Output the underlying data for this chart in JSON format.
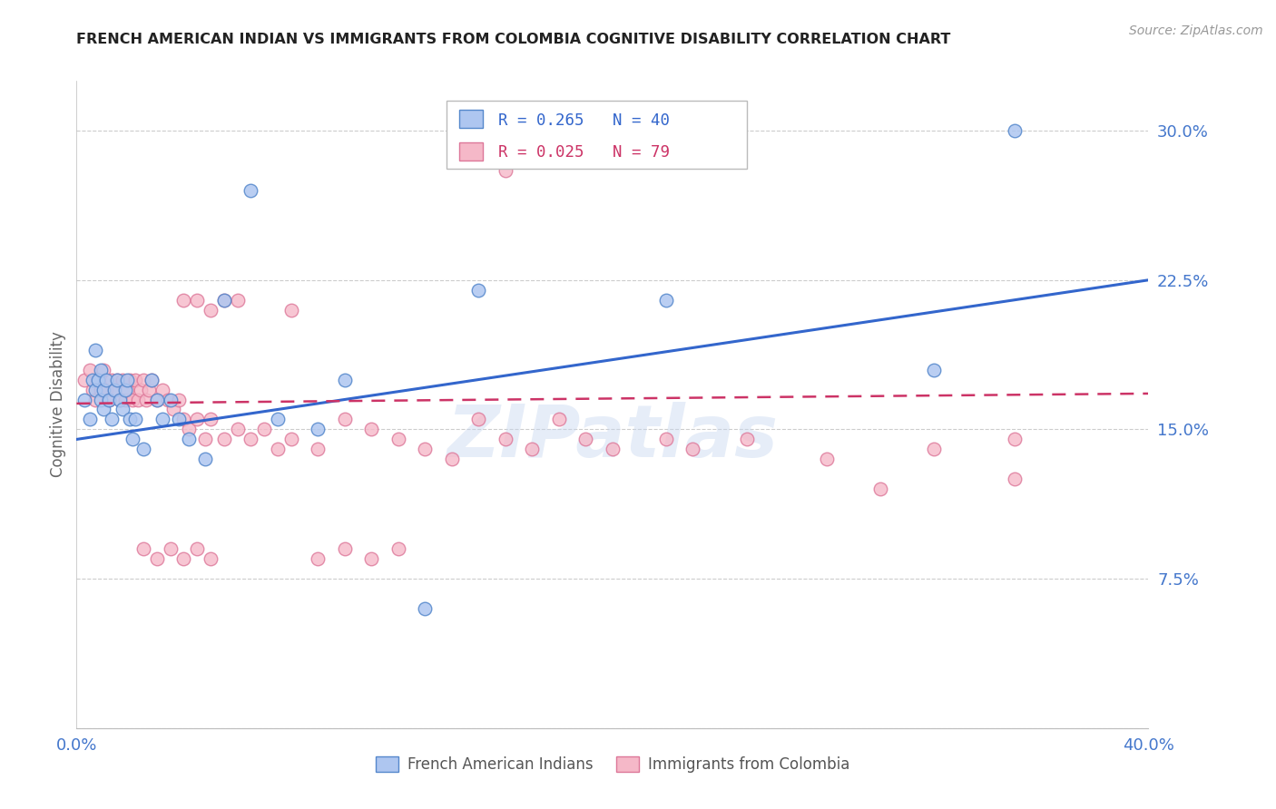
{
  "title": "FRENCH AMERICAN INDIAN VS IMMIGRANTS FROM COLOMBIA COGNITIVE DISABILITY CORRELATION CHART",
  "source": "Source: ZipAtlas.com",
  "ylabel": "Cognitive Disability",
  "xlim": [
    0.0,
    0.4
  ],
  "ylim": [
    0.0,
    0.325
  ],
  "yticks": [
    0.0,
    0.075,
    0.15,
    0.225,
    0.3
  ],
  "ytick_labels": [
    "",
    "7.5%",
    "15.0%",
    "22.5%",
    "30.0%"
  ],
  "xticks": [
    0.0,
    0.08,
    0.16,
    0.24,
    0.32,
    0.4
  ],
  "xtick_labels": [
    "0.0%",
    "",
    "",
    "",
    "",
    "40.0%"
  ],
  "watermark": "ZIPatlas",
  "series1_color": "#aec6f0",
  "series1_edge_color": "#5588cc",
  "series2_color": "#f5b8c8",
  "series2_edge_color": "#dd7799",
  "line1_color": "#3366cc",
  "line2_color": "#cc3366",
  "background_color": "#ffffff",
  "title_color": "#222222",
  "axis_label_color": "#4477cc",
  "grid_color": "#cccccc",
  "blue_r": "R = 0.265",
  "blue_n": "N = 40",
  "pink_r": "R = 0.025",
  "pink_n": "N = 79",
  "legend1_label": "French American Indians",
  "legend2_label": "Immigrants from Colombia",
  "blue_points_x": [
    0.003,
    0.005,
    0.006,
    0.007,
    0.007,
    0.008,
    0.009,
    0.009,
    0.01,
    0.01,
    0.011,
    0.012,
    0.013,
    0.014,
    0.015,
    0.016,
    0.017,
    0.018,
    0.019,
    0.02,
    0.021,
    0.022,
    0.025,
    0.028,
    0.03,
    0.032,
    0.035,
    0.038,
    0.042,
    0.048,
    0.055,
    0.065,
    0.075,
    0.09,
    0.1,
    0.13,
    0.15,
    0.22,
    0.32,
    0.35
  ],
  "blue_points_y": [
    0.165,
    0.155,
    0.175,
    0.19,
    0.17,
    0.175,
    0.165,
    0.18,
    0.17,
    0.16,
    0.175,
    0.165,
    0.155,
    0.17,
    0.175,
    0.165,
    0.16,
    0.17,
    0.175,
    0.155,
    0.145,
    0.155,
    0.14,
    0.175,
    0.165,
    0.155,
    0.165,
    0.155,
    0.145,
    0.135,
    0.215,
    0.27,
    0.155,
    0.15,
    0.175,
    0.06,
    0.22,
    0.215,
    0.18,
    0.3
  ],
  "pink_points_x": [
    0.003,
    0.005,
    0.006,
    0.007,
    0.008,
    0.009,
    0.01,
    0.011,
    0.012,
    0.013,
    0.014,
    0.015,
    0.016,
    0.017,
    0.018,
    0.019,
    0.02,
    0.021,
    0.022,
    0.023,
    0.024,
    0.025,
    0.026,
    0.027,
    0.028,
    0.03,
    0.032,
    0.034,
    0.036,
    0.038,
    0.04,
    0.042,
    0.045,
    0.048,
    0.05,
    0.055,
    0.06,
    0.065,
    0.07,
    0.075,
    0.08,
    0.09,
    0.1,
    0.11,
    0.12,
    0.13,
    0.14,
    0.15,
    0.16,
    0.17,
    0.18,
    0.19,
    0.2,
    0.22,
    0.23,
    0.25,
    0.28,
    0.3,
    0.32,
    0.35,
    0.04,
    0.045,
    0.05,
    0.055,
    0.06,
    0.08,
    0.09,
    0.1,
    0.11,
    0.12,
    0.025,
    0.03,
    0.035,
    0.04,
    0.045,
    0.05,
    0.15,
    0.16,
    0.35
  ],
  "pink_points_y": [
    0.175,
    0.18,
    0.17,
    0.165,
    0.175,
    0.17,
    0.18,
    0.17,
    0.165,
    0.175,
    0.17,
    0.175,
    0.165,
    0.175,
    0.165,
    0.17,
    0.175,
    0.165,
    0.175,
    0.165,
    0.17,
    0.175,
    0.165,
    0.17,
    0.175,
    0.165,
    0.17,
    0.165,
    0.16,
    0.165,
    0.155,
    0.15,
    0.155,
    0.145,
    0.155,
    0.145,
    0.15,
    0.145,
    0.15,
    0.14,
    0.145,
    0.14,
    0.155,
    0.15,
    0.145,
    0.14,
    0.135,
    0.155,
    0.145,
    0.14,
    0.155,
    0.145,
    0.14,
    0.145,
    0.14,
    0.145,
    0.135,
    0.12,
    0.14,
    0.145,
    0.215,
    0.215,
    0.21,
    0.215,
    0.215,
    0.21,
    0.085,
    0.09,
    0.085,
    0.09,
    0.09,
    0.085,
    0.09,
    0.085,
    0.09,
    0.085,
    0.285,
    0.28,
    0.125
  ],
  "blue_line_x": [
    0.0,
    0.4
  ],
  "blue_line_y": [
    0.145,
    0.225
  ],
  "pink_line_x": [
    0.0,
    0.4
  ],
  "pink_line_y": [
    0.163,
    0.168
  ]
}
